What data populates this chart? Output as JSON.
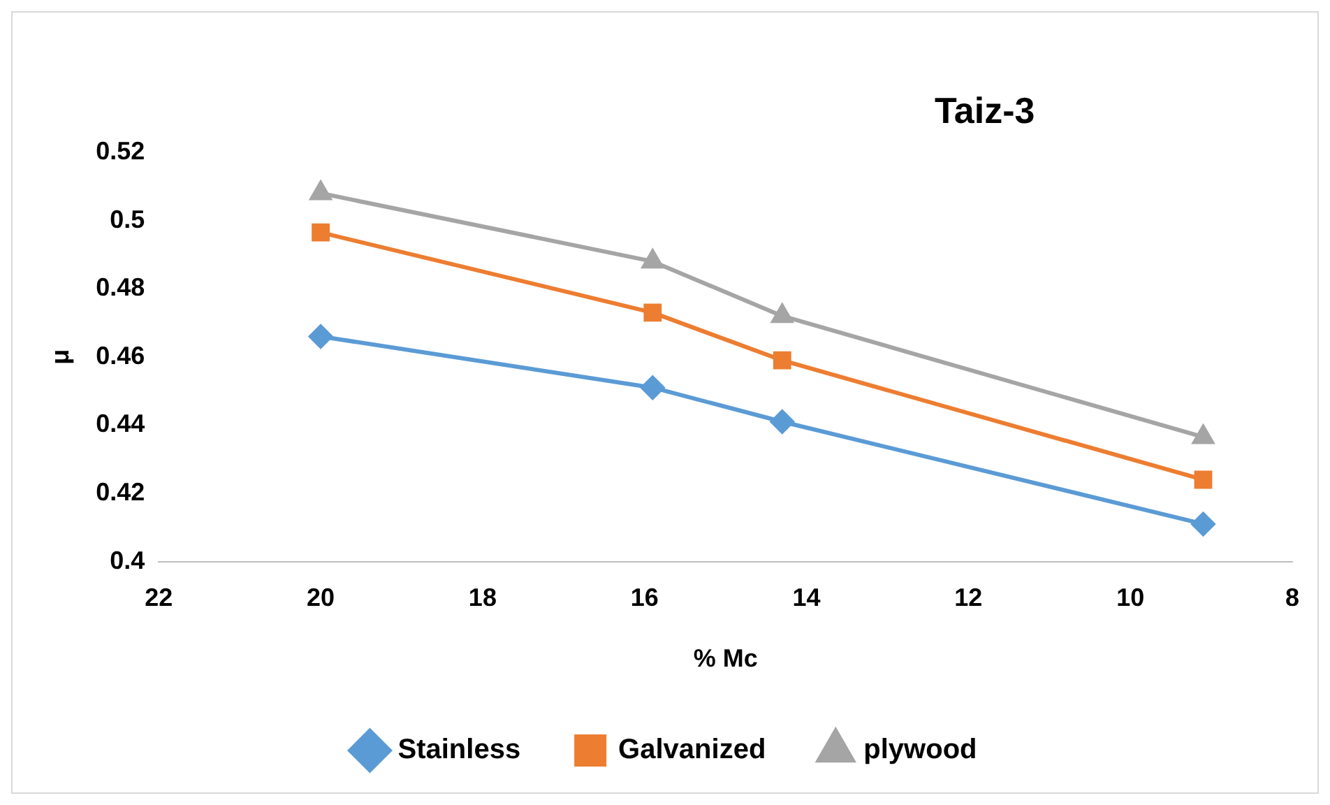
{
  "chart_data": {
    "type": "line",
    "title": "Taiz-3",
    "xlabel": "% Mc",
    "ylabel": "μ",
    "xlim": [
      22,
      8
    ],
    "xticks": [
      22,
      20,
      18,
      16,
      14,
      12,
      10,
      8
    ],
    "ylim": [
      0.4,
      0.52
    ],
    "yticks": [
      0.4,
      0.42,
      0.44,
      0.46,
      0.48,
      0.5,
      0.52
    ],
    "x": [
      20,
      15.9,
      14.3,
      9.1
    ],
    "grid": false,
    "legend": "bottom",
    "line_style": "solid",
    "series": [
      {
        "name": "Stainless",
        "color": "#5b9bd5",
        "marker": "diamond",
        "values": [
          0.466,
          0.451,
          0.441,
          0.411
        ]
      },
      {
        "name": "Galvanized",
        "color": "#ed7d31",
        "marker": "square",
        "values": [
          0.4965,
          0.473,
          0.459,
          0.424
        ]
      },
      {
        "name": "plywood",
        "color": "#a5a5a5",
        "marker": "triangle",
        "values": [
          0.508,
          0.488,
          0.472,
          0.4365
        ]
      }
    ]
  }
}
